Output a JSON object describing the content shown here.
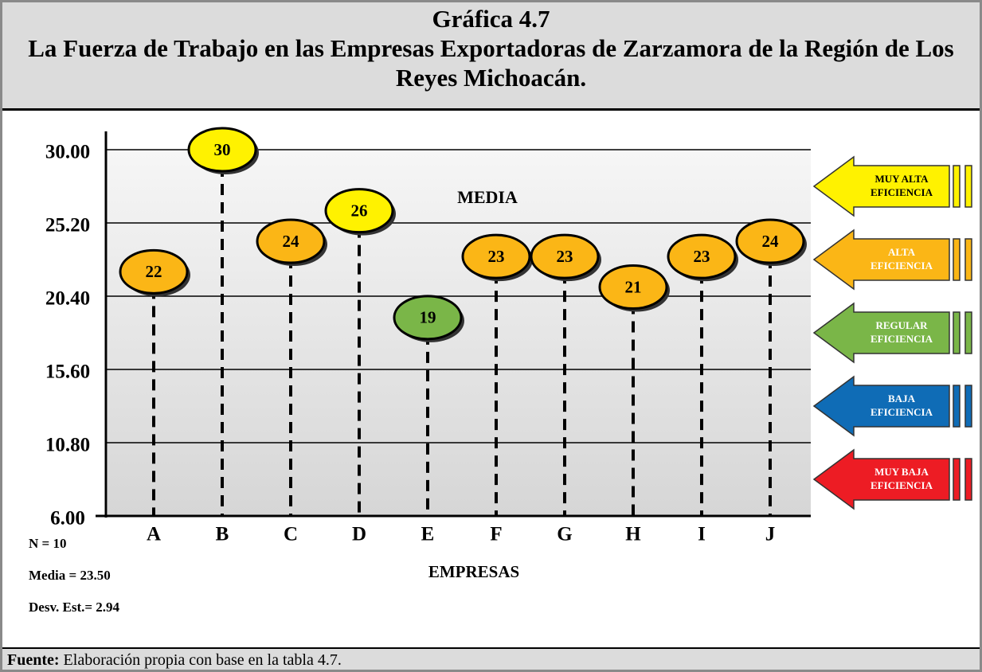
{
  "chart_data": {
    "type": "scatter",
    "title": "Gráfica 4.7",
    "subtitle": "La Fuerza de Trabajo en las Empresas Exportadoras de Zarzamora de la Región de Los Reyes Michoacán.",
    "categories": [
      "A",
      "B",
      "C",
      "D",
      "E",
      "F",
      "G",
      "H",
      "I",
      "J"
    ],
    "values": [
      22,
      30,
      24,
      26,
      19,
      23,
      23,
      21,
      23,
      24
    ],
    "ylim": [
      6,
      30
    ],
    "yticks": [
      {
        "value": 6,
        "label": "6.00"
      },
      {
        "value": 10.8,
        "label": "10.80"
      },
      {
        "value": 15.6,
        "label": "15.60"
      },
      {
        "value": 20.4,
        "label": "20.40"
      },
      {
        "value": 25.2,
        "label": "25.20"
      },
      {
        "value": 30,
        "label": "30.00"
      }
    ],
    "grid": true,
    "xlabel": "EMPRESAS",
    "annotation": "MEDIA",
    "stats": [
      "N = 10",
      "Media = 23.50",
      "Desv. Est.= 2.94"
    ],
    "bands": [
      {
        "name": [
          "MUY ALTA",
          "EFICIENCIA"
        ],
        "color": "#fff200",
        "range": [
          25.2,
          30
        ]
      },
      {
        "name": [
          "ALTA",
          "EFICIENCIA"
        ],
        "color": "#fbb616",
        "range": [
          20.4,
          25.2
        ]
      },
      {
        "name": [
          "REGULAR",
          "EFICIENCIA"
        ],
        "color": "#7ab648",
        "range": [
          15.6,
          20.4
        ]
      },
      {
        "name": [
          "BAJA",
          "EFICIENCIA"
        ],
        "color": "#0f6cb6",
        "range": [
          10.8,
          15.6
        ]
      },
      {
        "name": [
          "MUY BAJA",
          "EFICIENCIA"
        ],
        "color": "#ed1c24",
        "range": [
          6,
          10.8
        ]
      }
    ]
  },
  "footer": {
    "label": "Fuente:",
    "text": "Elaboración propia con base en la tabla 4.7."
  }
}
